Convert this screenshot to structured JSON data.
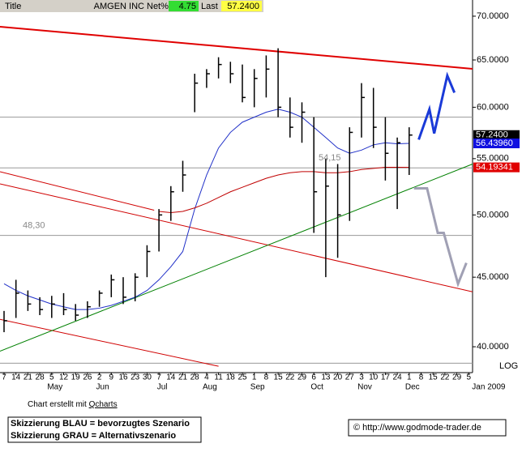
{
  "chart_data": {
    "type": "ohlc",
    "header": {
      "title_label": "Title",
      "symbol": "AMGEN INC",
      "net_label": "Net%",
      "net": 4.75,
      "last_label": "Last",
      "last": 57.24,
      "last_label_value": "57.2400"
    },
    "categories": [
      "7",
      "14",
      "21",
      "28",
      "5",
      "12",
      "19",
      "26",
      "2",
      "9",
      "16",
      "23",
      "30",
      "7",
      "14",
      "21",
      "28",
      "4",
      "11",
      "18",
      "25",
      "1",
      "8",
      "15",
      "22",
      "29",
      "6",
      "13",
      "20",
      "27",
      "3",
      "10",
      "17",
      "24",
      "1",
      "8",
      "15",
      "22",
      "29",
      "5"
    ],
    "x_groups": [
      {
        "label": "May",
        "start": 4
      },
      {
        "label": "Jun",
        "start": 8
      },
      {
        "label": "Jul",
        "start": 13
      },
      {
        "label": "Aug",
        "start": 17
      },
      {
        "label": "Sep",
        "start": 21
      },
      {
        "label": "Oct",
        "start": 26
      },
      {
        "label": "Nov",
        "start": 30
      },
      {
        "label": "Dec",
        "start": 34
      },
      {
        "label": "Jan 2009",
        "start": 39
      }
    ],
    "high": [
      42.5,
      44.8,
      44.0,
      43.5,
      43.6,
      43.8,
      43.0,
      43.2,
      44.0,
      45.2,
      45.0,
      45.3,
      47.5,
      50.5,
      52.5,
      54.8,
      63.5,
      64.0,
      65.3,
      64.8,
      64.5,
      64.0,
      65.5,
      66.3,
      61.0,
      60.5,
      59.0,
      55.0,
      54.5,
      58.0,
      62.5,
      62.0,
      59.0,
      57.0,
      58.0,
      null,
      null,
      null,
      null,
      null
    ],
    "low": [
      41.0,
      42.0,
      42.5,
      42.2,
      42.0,
      42.2,
      41.8,
      42.0,
      42.8,
      43.5,
      43.0,
      43.2,
      45.0,
      47.0,
      49.5,
      52.0,
      59.5,
      62.0,
      63.0,
      62.5,
      60.5,
      60.0,
      61.0,
      59.0,
      57.0,
      56.5,
      48.5,
      45.0,
      46.5,
      49.5,
      57.0,
      56.0,
      53.0,
      50.5,
      53.5,
      null,
      null,
      null,
      null,
      null
    ],
    "close": [
      41.8,
      43.8,
      43.0,
      42.6,
      43.0,
      42.6,
      42.2,
      42.8,
      43.8,
      44.8,
      43.5,
      45.0,
      47.0,
      50.0,
      52.0,
      53.5,
      62.5,
      63.5,
      64.5,
      63.5,
      61.0,
      63.0,
      64.0,
      60.0,
      58.0,
      59.5,
      52.0,
      52.5,
      50.0,
      57.5,
      61.0,
      58.0,
      55.5,
      56.5,
      57.24,
      null,
      null,
      null,
      null,
      null
    ],
    "color": "#000000",
    "overlays": [
      {
        "color": "#2030c8",
        "values": [
          44.5,
          44.0,
          43.6,
          43.3,
          43.0,
          42.8,
          42.6,
          42.6,
          42.7,
          42.9,
          43.2,
          43.5,
          44.0,
          44.8,
          45.8,
          47.0,
          50.5,
          53.5,
          56.0,
          57.5,
          58.5,
          59.0,
          59.5,
          59.8,
          59.5,
          59.0,
          58.0,
          57.0,
          56.0,
          55.5,
          55.8,
          56.3,
          56.5,
          56.4,
          56.4396,
          null,
          null,
          null,
          null,
          null
        ]
      },
      {
        "color": "#c00000",
        "values": [
          null,
          null,
          null,
          null,
          null,
          null,
          null,
          null,
          null,
          null,
          null,
          null,
          null,
          50.3,
          50.2,
          50.3,
          50.6,
          51.0,
          51.5,
          52.0,
          52.4,
          52.8,
          53.2,
          53.5,
          53.7,
          53.8,
          53.8,
          53.7,
          53.7,
          53.8,
          54.0,
          54.1,
          54.2,
          54.2,
          54.19341,
          null,
          null,
          null,
          null,
          null
        ]
      }
    ],
    "price_tags": [
      {
        "value": 57.24,
        "label": "57.2400",
        "color": "#000000"
      },
      {
        "value": 56.4396,
        "label": "56.43960",
        "color": "#1010e0"
      },
      {
        "value": 54.19341,
        "label": "54.19341",
        "color": "#e00000"
      }
    ],
    "trendlines": [
      {
        "color": "#e00000",
        "width": 2,
        "x": [
          -0.34,
          39.32
        ],
        "y": [
          68.76,
          64.03
        ]
      },
      {
        "color": "#d00000",
        "width": 1,
        "x": [
          -0.34,
          39.32
        ],
        "y": [
          52.7,
          43.9
        ]
      },
      {
        "color": "#d00000",
        "width": 1,
        "x": [
          -0.34,
          12.6
        ],
        "y": [
          53.8,
          50.4
        ]
      },
      {
        "color": "#d00000",
        "width": 1,
        "x": [
          -0.34,
          18.0
        ],
        "y": [
          41.9,
          38.7
        ]
      },
      {
        "color": "#008000",
        "width": 1,
        "x": [
          -0.34,
          39.32
        ],
        "y": [
          39.7,
          54.5
        ]
      }
    ],
    "levels": [
      59.0,
      {
        "value": 54.15,
        "label": "54,15"
      },
      {
        "value": 48.3,
        "label": "48,30"
      },
      38.9
    ],
    "scenarios": [
      {
        "color": "#1a3ad8",
        "x": [
          34.8,
          35.7,
          36.1,
          37.2,
          37.8
        ],
        "y": [
          56.8,
          59.8,
          57.4,
          63.3,
          61.5
        ]
      },
      {
        "color": "#a0a0b4",
        "x": [
          34.4,
          35.5,
          36.4,
          36.9,
          38.1,
          38.8
        ],
        "y": [
          52.3,
          52.3,
          48.5,
          48.5,
          44.5,
          46.1
        ]
      }
    ],
    "log_scale": true,
    "ylim": [
      38.55,
      70.77
    ],
    "yticks": [
      {
        "value": 40,
        "label": "40.0000"
      },
      {
        "value": 45,
        "label": "45.0000"
      },
      {
        "value": 50,
        "label": "50.0000"
      },
      {
        "value": 55,
        "label": "55.0000"
      },
      {
        "value": 60,
        "label": "60.0000"
      },
      {
        "value": 65,
        "label": "65.0000"
      },
      {
        "value": 70,
        "label": "70.0000"
      }
    ],
    "log_label": "LOG",
    "footer": {
      "credit_prefix": "Chart erstellt mit ",
      "credit_link": "Qcharts",
      "legend_blue": "Skizzierung BLAU = bevorzugtes Szenario",
      "legend_gray": "Skizzierung GRAU = Alternativszenario",
      "copyright": "© http://www.godmode-trader.de"
    }
  }
}
